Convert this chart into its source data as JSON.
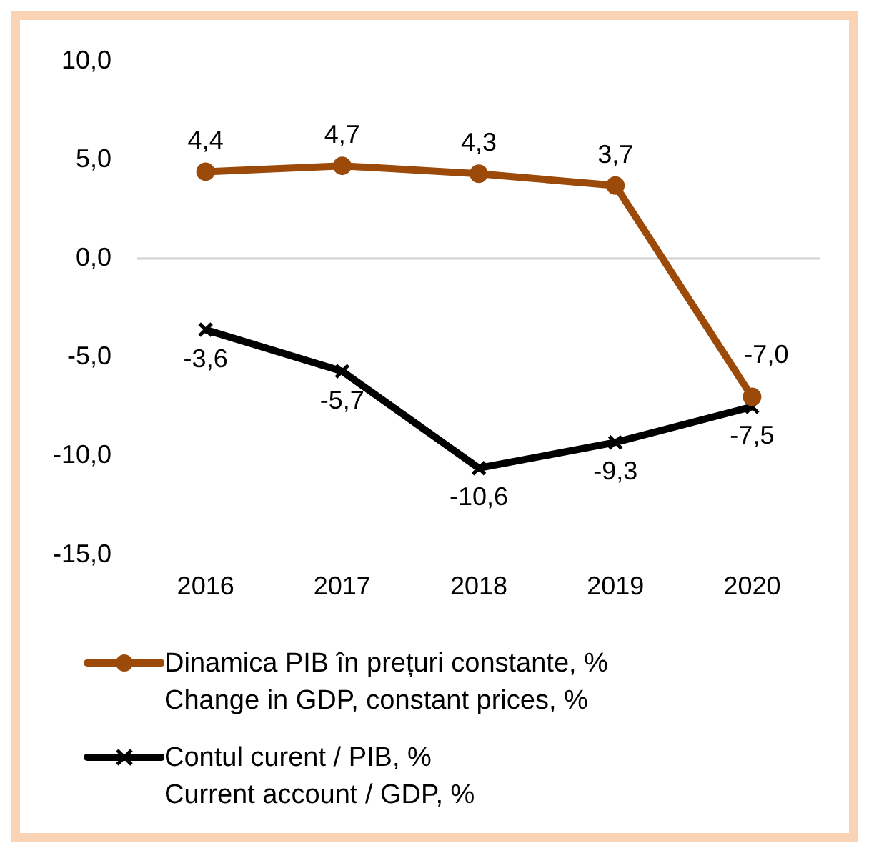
{
  "chart_data": {
    "type": "line",
    "categories": [
      "2016",
      "2017",
      "2018",
      "2019",
      "2020"
    ],
    "series": [
      {
        "name": "Dinamica PIB în prețuri constante, %\nChange in GDP, constant prices, %",
        "color": "#9c4a0a",
        "marker": "circle",
        "values": [
          4.4,
          4.7,
          4.3,
          3.7,
          -7.0
        ],
        "value_labels": [
          "4,4",
          "4,7",
          "4,3",
          "3,7",
          "-7,0"
        ]
      },
      {
        "name": "Contul curent / PIB, %\nCurrent account / GDP, %",
        "color": "#000000",
        "marker": "cross",
        "values": [
          -3.6,
          -5.7,
          -10.6,
          -9.3,
          -7.5
        ],
        "value_labels": [
          "-3,6",
          "-5,7",
          "-10,6",
          "-9,3",
          "-7,5"
        ]
      }
    ],
    "ylim": [
      -15,
      10
    ],
    "yticks": [
      {
        "value": -15,
        "label": "-15,0"
      },
      {
        "value": -10,
        "label": "-10,0"
      },
      {
        "value": -5,
        "label": "-5,0"
      },
      {
        "value": 0,
        "label": "0,0"
      },
      {
        "value": 5,
        "label": "5,0"
      },
      {
        "value": 10,
        "label": "10,0"
      }
    ],
    "ref_lines": [
      {
        "axis": "y",
        "value": 0,
        "color": "#d0d0d0"
      }
    ],
    "legend": "bottom",
    "line_style": "solid"
  }
}
